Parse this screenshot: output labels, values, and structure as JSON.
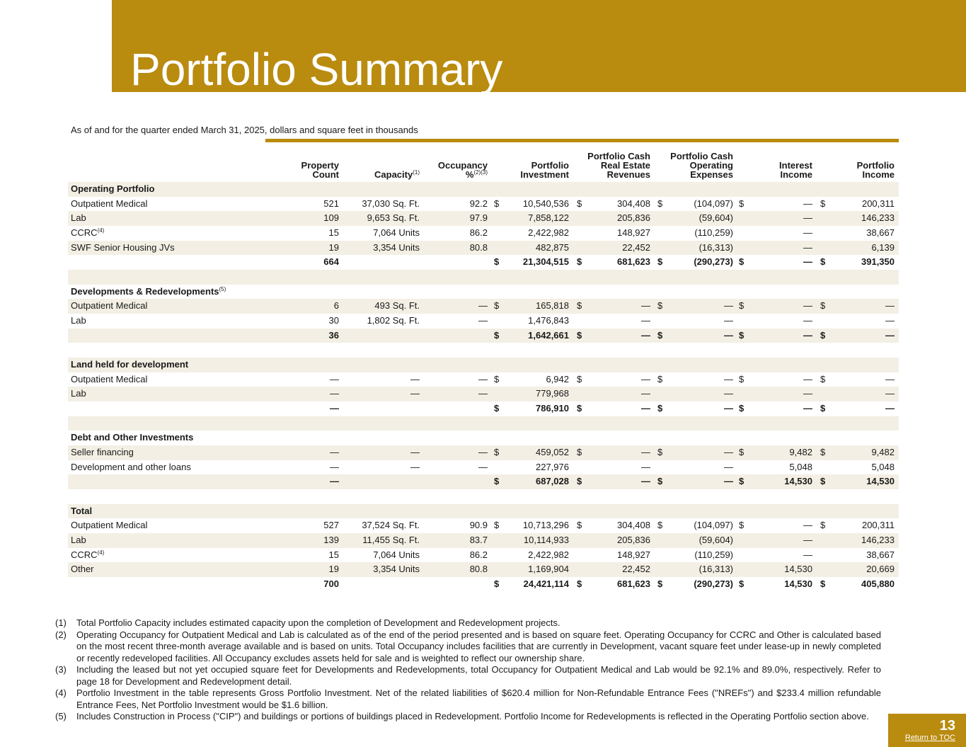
{
  "header": {
    "title": "Portfolio Summary",
    "subtitle": "As of and for the quarter ended March 31, 2025, dollars and square feet in thousands"
  },
  "table": {
    "columns": [
      "Property\nCount",
      {
        "text": "Capacity",
        "note": "(1)"
      },
      {
        "text": "Occupancy\n%",
        "note": "(2)(3)"
      },
      "Portfolio\nInvestment",
      "Portfolio Cash\nReal Estate\nRevenues",
      "Portfolio Cash\nOperating\nExpenses",
      "Interest\nIncome",
      "Portfolio\nIncome"
    ],
    "rows": [
      {
        "label": "Operating Portfolio"
      },
      {
        "label": "Outpatient Medical",
        "cells": [
          "521",
          "37,030 Sq. Ft.",
          "92.2",
          [
            "$",
            "10,540,536"
          ],
          [
            "$",
            "304,408"
          ],
          [
            "$",
            "(104,097)"
          ],
          [
            "$",
            "—"
          ],
          [
            "$",
            "200,311"
          ]
        ]
      },
      {
        "label": "Lab",
        "cells": [
          "109",
          "9,653 Sq. Ft.",
          "97.9",
          "7,858,122",
          "205,836",
          "(59,604)",
          "—",
          "146,233"
        ]
      },
      {
        "label": {
          "text": "CCRC",
          "note": "(4)"
        },
        "cells": [
          "15",
          "7,064 Units",
          "86.2",
          "2,422,982",
          "148,927",
          "(110,259)",
          "—",
          "38,667"
        ]
      },
      {
        "label": "SWF Senior Housing JVs",
        "cells": [
          "19",
          "3,354 Units",
          "80.8",
          "482,875",
          "22,452",
          "(16,313)",
          "—",
          "6,139"
        ]
      },
      {
        "cells": [
          "664",
          null,
          null,
          [
            "$",
            "21,304,515"
          ],
          [
            "$",
            "681,623"
          ],
          [
            "$",
            "(290,273)"
          ],
          [
            "$",
            "—"
          ],
          [
            "$",
            "391,350"
          ]
        ]
      },
      {},
      {
        "label": {
          "text": "Developments & Redevelopments",
          "note": "(5)"
        }
      },
      {
        "label": "Outpatient Medical",
        "cells": [
          "6",
          "493 Sq. Ft.",
          "—",
          [
            "$",
            "165,818"
          ],
          [
            "$",
            "—"
          ],
          [
            "$",
            "—"
          ],
          [
            "$",
            "—"
          ],
          [
            "$",
            "—"
          ]
        ]
      },
      {
        "label": "Lab",
        "cells": [
          "30",
          "1,802 Sq. Ft.",
          "—",
          "1,476,843",
          "—",
          "—",
          "—",
          "—"
        ]
      },
      {
        "cells": [
          "36",
          null,
          null,
          [
            "$",
            "1,642,661"
          ],
          [
            "$",
            "—"
          ],
          [
            "$",
            "—"
          ],
          [
            "$",
            "—"
          ],
          [
            "$",
            "—"
          ]
        ]
      },
      {},
      {
        "label": "Land held for development"
      },
      {
        "label": "Outpatient Medical",
        "cells": [
          "—",
          "—",
          "—",
          [
            "$",
            "6,942"
          ],
          [
            "$",
            "—"
          ],
          [
            "$",
            "—"
          ],
          [
            "$",
            "—"
          ],
          [
            "$",
            "—"
          ]
        ]
      },
      {
        "label": "Lab",
        "cells": [
          "—",
          "—",
          "—",
          "779,968",
          "—",
          "—",
          "—",
          "—"
        ]
      },
      {
        "cells": [
          "—",
          null,
          null,
          [
            "$",
            "786,910"
          ],
          [
            "$",
            "—"
          ],
          [
            "$",
            "—"
          ],
          [
            "$",
            "—"
          ],
          [
            "$",
            "—"
          ]
        ]
      },
      {},
      {
        "label": "Debt and Other Investments"
      },
      {
        "label": "Seller financing",
        "cells": [
          "—",
          "—",
          "—",
          [
            "$",
            "459,052"
          ],
          [
            "$",
            "—"
          ],
          [
            "$",
            "—"
          ],
          [
            "$",
            "9,482"
          ],
          [
            "$",
            "9,482"
          ]
        ]
      },
      {
        "label": "Development and other loans",
        "cells": [
          "—",
          "—",
          "—",
          "227,976",
          "—",
          "—",
          "5,048",
          "5,048"
        ]
      },
      {
        "cells": [
          "—",
          null,
          null,
          [
            "$",
            "687,028"
          ],
          [
            "$",
            "—"
          ],
          [
            "$",
            "—"
          ],
          [
            "$",
            "14,530"
          ],
          [
            "$",
            "14,530"
          ]
        ]
      },
      {},
      {
        "label": "Total"
      },
      {
        "label": "Outpatient Medical",
        "cells": [
          "527",
          "37,524 Sq. Ft.",
          "90.9",
          [
            "$",
            "10,713,296"
          ],
          [
            "$",
            "304,408"
          ],
          [
            "$",
            "(104,097)"
          ],
          [
            "$",
            "—"
          ],
          [
            "$",
            "200,311"
          ]
        ]
      },
      {
        "label": "Lab",
        "cells": [
          "139",
          "11,455 Sq. Ft.",
          "83.7",
          "10,114,933",
          "205,836",
          "(59,604)",
          "—",
          "146,233"
        ]
      },
      {
        "label": {
          "text": "CCRC",
          "note": "(4)"
        },
        "cells": [
          "15",
          "7,064 Units",
          "86.2",
          "2,422,982",
          "148,927",
          "(110,259)",
          "—",
          "38,667"
        ]
      },
      {
        "label": "Other",
        "cells": [
          "19",
          "3,354 Units",
          "80.8",
          "1,169,904",
          "22,452",
          "(16,313)",
          "14,530",
          "20,669"
        ]
      },
      {
        "cells": [
          "700",
          null,
          null,
          [
            "$",
            "24,421,114"
          ],
          [
            "$",
            "681,623"
          ],
          [
            "$",
            "(290,273)"
          ],
          [
            "$",
            "14,530"
          ],
          [
            "$",
            "405,880"
          ]
        ]
      }
    ]
  },
  "footnotes": [
    {
      "num": "(1)",
      "text": "Total Portfolio Capacity includes estimated capacity upon the completion of Development and Redevelopment projects."
    },
    {
      "num": "(2)",
      "text": "Operating Occupancy for Outpatient Medical and Lab is calculated as of the end of the period presented and is based on square feet. Operating Occupancy for CCRC and Other is calculated based on the most recent three-month average available and is based on units. Total Occupancy includes facilities that are currently in Development, vacant square feet under lease-up in newly completed or recently redeveloped facilities. All Occupancy excludes assets held for sale and is weighted to reflect our ownership share."
    },
    {
      "num": "(3)",
      "text": "Including the leased but not yet occupied square feet for Developments and Redevelopments, total Occupancy for Outpatient Medical and Lab would be 92.1% and 89.0%, respectively. Refer to page 18 for Development and Redevelopment detail."
    },
    {
      "num": "(4)",
      "text": "Portfolio Investment in the table represents Gross Portfolio Investment. Net of the related liabilities of $620.4 million for Non-Refundable Entrance Fees (\"NREFs\") and $233.4 million refundable Entrance Fees, Net Portfolio Investment would be $1.6 billion."
    },
    {
      "num": "(5)",
      "text": "Includes Construction in Process (\"CIP\") and buildings or portions of buildings placed in Redevelopment. Portfolio Income for Redevelopments is reflected in the Operating Portfolio section above."
    }
  ],
  "footer": {
    "page": "13",
    "link": "Return to TOC"
  }
}
